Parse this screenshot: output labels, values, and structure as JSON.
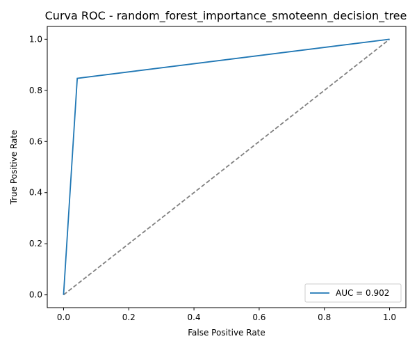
{
  "chart_data": {
    "type": "line",
    "title": "Curva ROC - random_forest_importance_smoteenn_decision_tree",
    "xlabel": "False Positive Rate",
    "ylabel": "True Positive Rate",
    "xlim": [
      -0.05,
      1.05
    ],
    "ylim": [
      -0.05,
      1.05
    ],
    "xticks": [
      0.0,
      0.2,
      0.4,
      0.6,
      0.8,
      1.0
    ],
    "yticks": [
      0.0,
      0.2,
      0.4,
      0.6,
      0.8,
      1.0
    ],
    "xtick_labels": [
      "0.0",
      "0.2",
      "0.4",
      "0.6",
      "0.8",
      "1.0"
    ],
    "ytick_labels": [
      "0.0",
      "0.2",
      "0.4",
      "0.6",
      "0.8",
      "1.0"
    ],
    "grid": false,
    "legend_position": "lower-right",
    "series": [
      {
        "name": "AUC = 0.902",
        "color": "#1f77b4",
        "style": "solid",
        "x": [
          0.0,
          0.042,
          1.0
        ],
        "y": [
          0.0,
          0.847,
          1.0
        ]
      },
      {
        "color": "#808080",
        "style": "dashed",
        "x": [
          0.0,
          1.0
        ],
        "y": [
          0.0,
          1.0
        ]
      }
    ]
  }
}
